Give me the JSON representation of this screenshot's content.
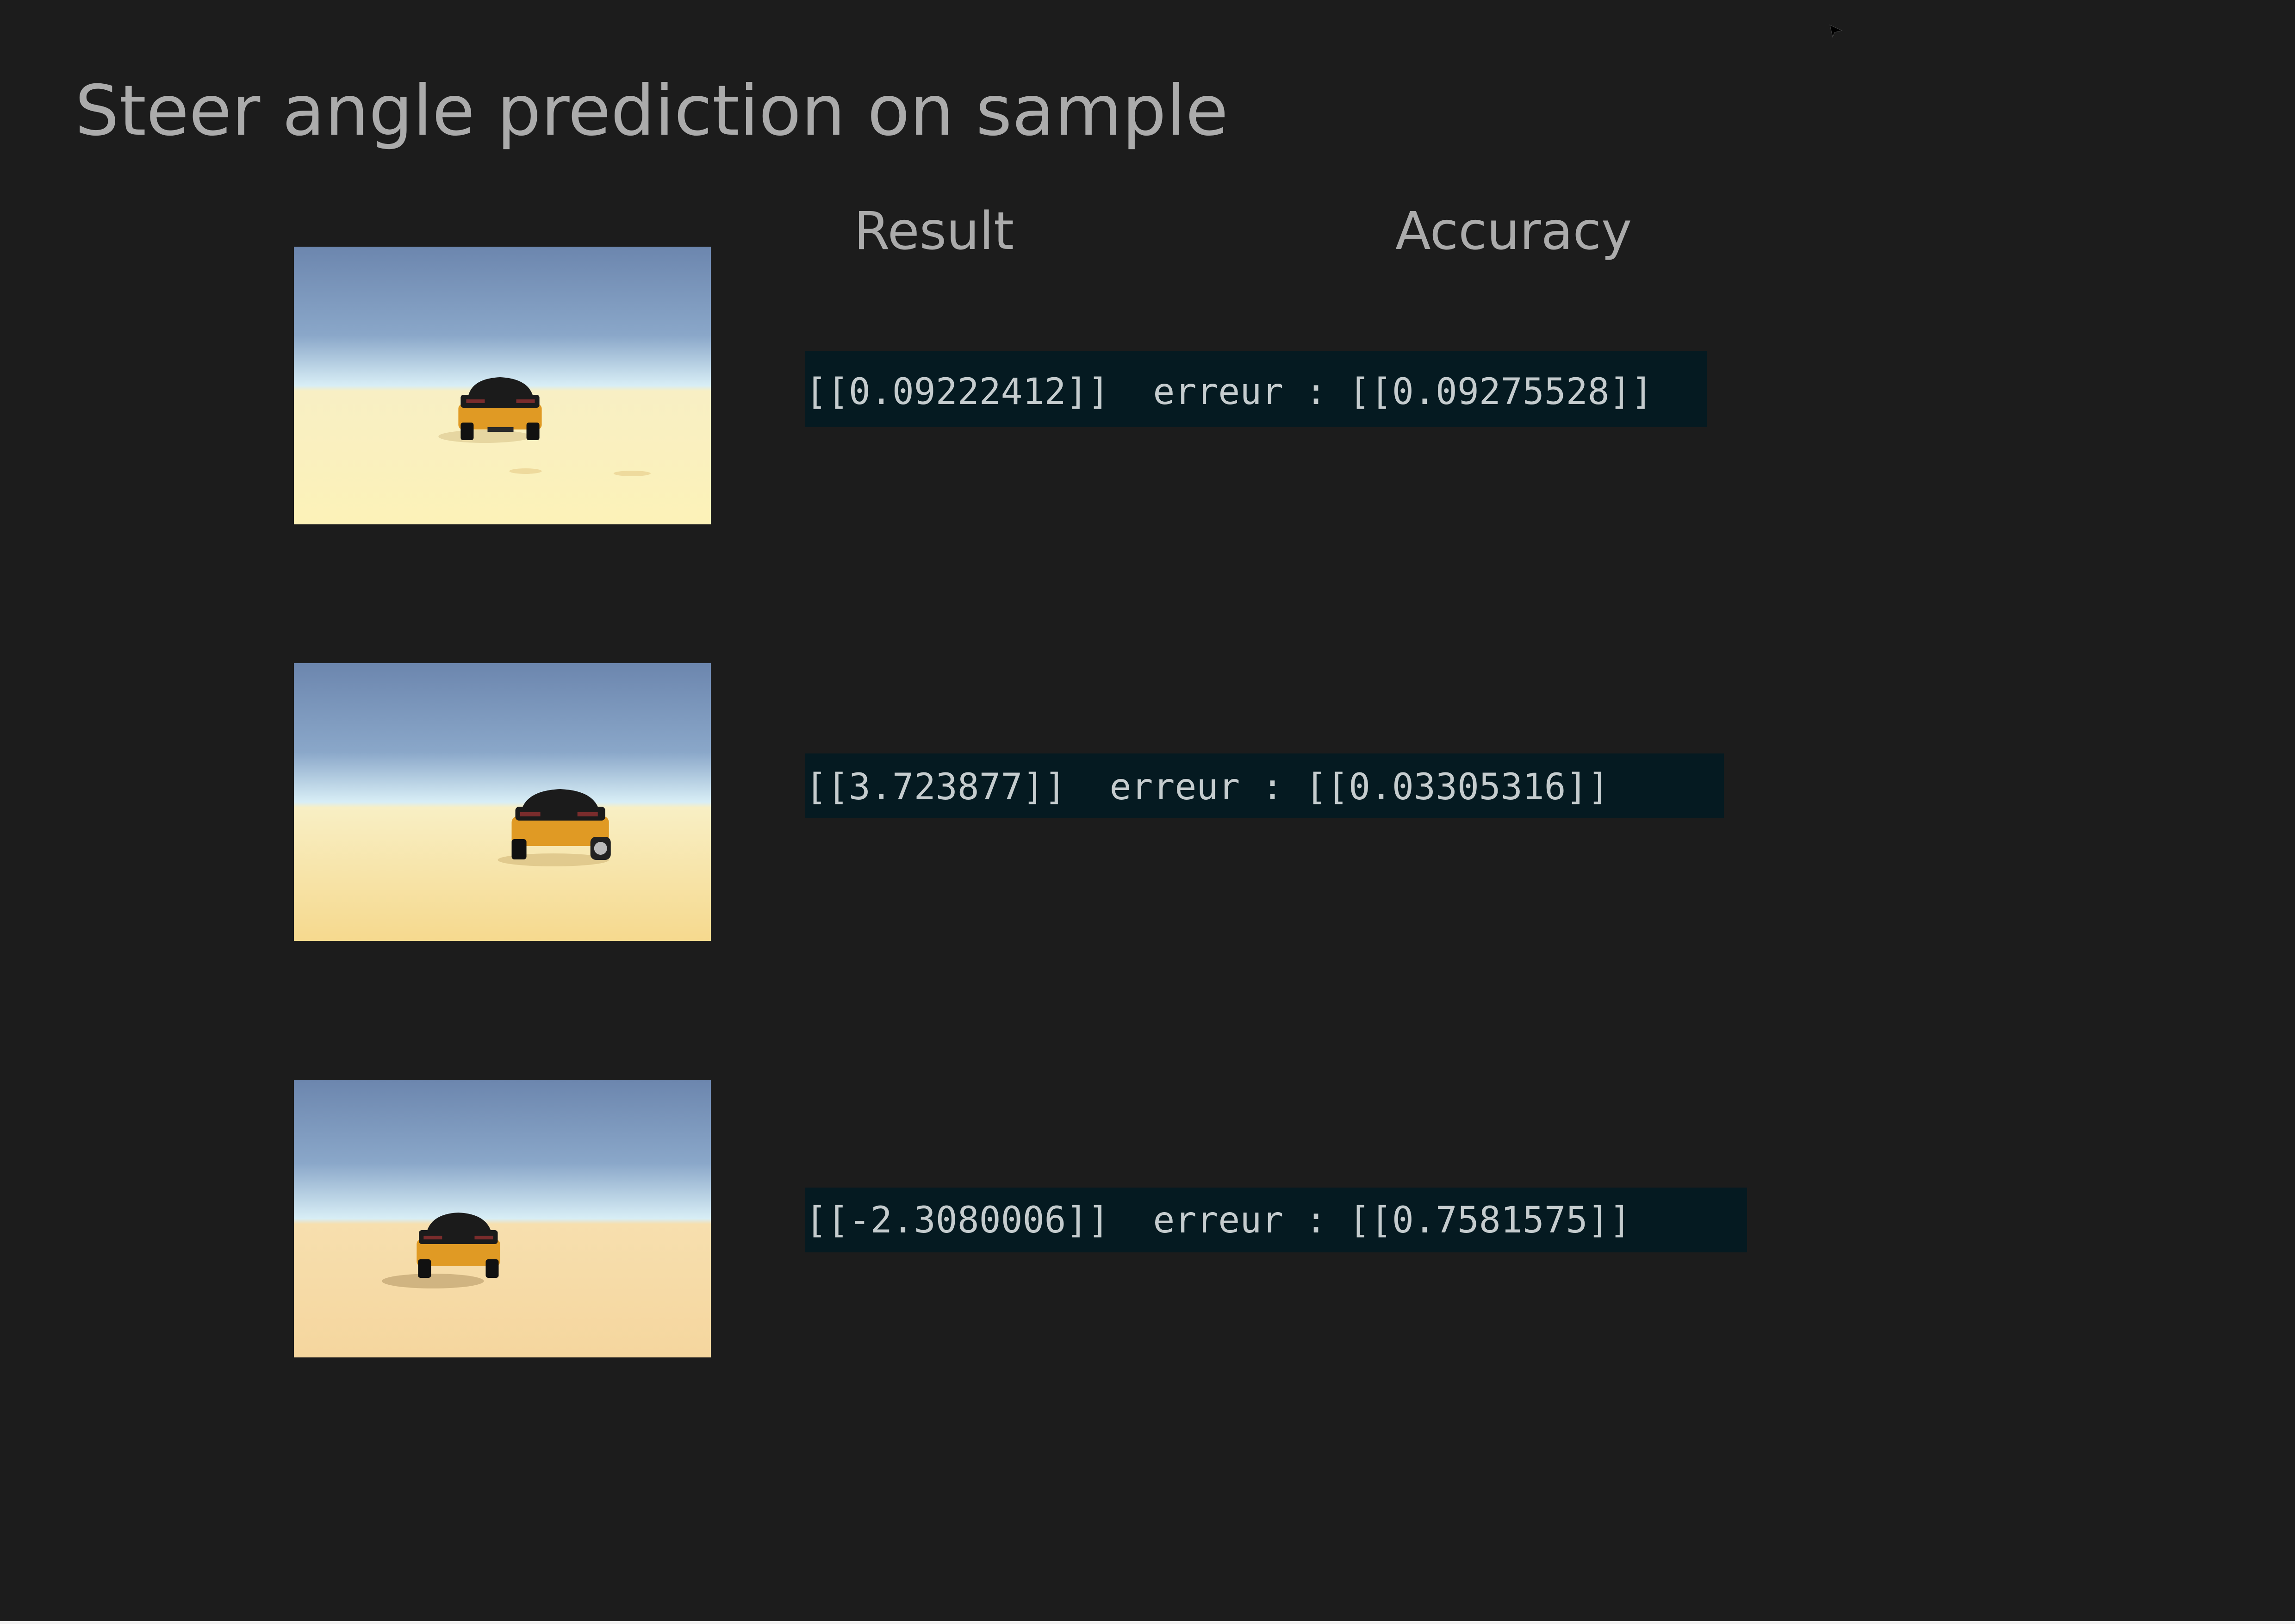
{
  "title": "Steer angle prediction on sample",
  "headers": {
    "result": "Result",
    "accuracy": "Accuracy"
  },
  "samples": [
    {
      "prediction": "[[0.09222412]]",
      "separator": "  erreur : ",
      "error": "[[0.09275528]]"
    },
    {
      "prediction": "[[3.723877]]",
      "separator": "  erreur : ",
      "error": "[[0.03305316]]"
    },
    {
      "prediction": "[[-2.3080006]]",
      "separator": "  erreur : ",
      "error": "[[0.7581575]]"
    }
  ],
  "colors": {
    "background": "#1c1c1c",
    "text": "#ababab",
    "output_box": "#051a21",
    "output_text": "#c5ccce",
    "sky_top": "#6c86ae",
    "sky_horizon": "#d6ecf4",
    "sand": "#f5dc9c",
    "car_body": "#e09a24",
    "car_roof": "#1b1b1b"
  },
  "icons": {
    "cursor": "mouse-pointer-icon",
    "sample_image": "car-on-desert-image"
  }
}
